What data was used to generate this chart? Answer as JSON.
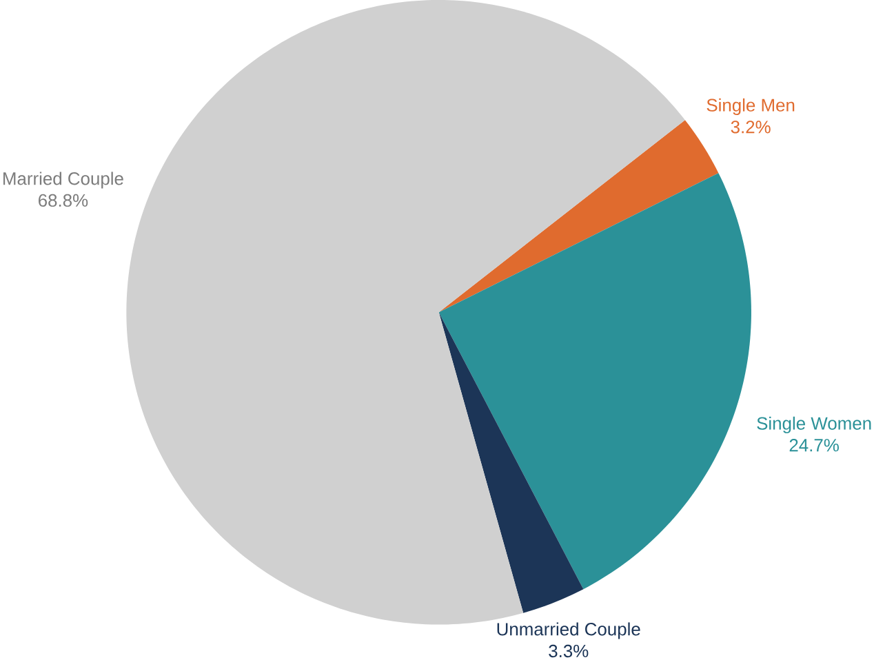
{
  "chart_data": {
    "type": "pie",
    "categories": [
      "Single Men",
      "Single Women",
      "Unmarried Couple",
      "Married Couple"
    ],
    "values": [
      3.2,
      24.7,
      3.3,
      68.8
    ],
    "value_labels": [
      "3.2%",
      "24.7%",
      "3.3%",
      "68.8%"
    ],
    "colors": [
      "#e06b2e",
      "#2b9198",
      "#1c3557",
      "#d0d0d0"
    ]
  }
}
